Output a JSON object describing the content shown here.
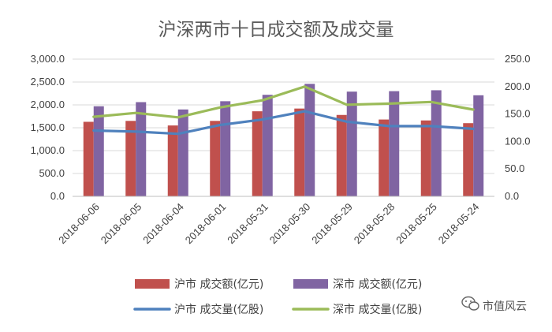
{
  "chart_data": {
    "type": "bar",
    "title": "沪深两市十日成交额及成交量",
    "categories": [
      "2018-06-06",
      "2018-06-05",
      "2018-06-04",
      "2018-06-01",
      "2018-05-31",
      "2018-05-30",
      "2018-05-29",
      "2018-05-28",
      "2018-05-25",
      "2018-05-24"
    ],
    "series": [
      {
        "name": "沪市 成交额(亿元)",
        "kind": "bar",
        "axis": "left",
        "color": "#c0504d",
        "values": [
          1630,
          1650,
          1550,
          1650,
          1860,
          1920,
          1780,
          1680,
          1660,
          1600
        ]
      },
      {
        "name": "深市 成交额(亿元)",
        "kind": "bar",
        "axis": "left",
        "color": "#8064a2",
        "values": [
          1970,
          2060,
          1900,
          2080,
          2220,
          2460,
          2290,
          2300,
          2320,
          2210
        ]
      },
      {
        "name": "沪市 成交量(亿股)",
        "kind": "line",
        "axis": "right",
        "color": "#4f81bd",
        "values": [
          120,
          118,
          114,
          130,
          140,
          155,
          136,
          128,
          128,
          123
        ]
      },
      {
        "name": "深市 成交量(亿股)",
        "kind": "line",
        "axis": "right",
        "color": "#9bbb59",
        "values": [
          145,
          152,
          144,
          162,
          175,
          200,
          167,
          169,
          172,
          158
        ]
      }
    ],
    "left_axis": {
      "ylim": [
        0,
        3000
      ],
      "ticks": [
        "0.0",
        "500.0",
        "1,000.0",
        "1,500.0",
        "2,000.0",
        "2,500.0",
        "3,000.0"
      ]
    },
    "right_axis": {
      "ylim": [
        0,
        250
      ],
      "ticks": [
        "0.0",
        "50.0",
        "100.0",
        "150.0",
        "200.0",
        "250.0"
      ]
    },
    "grid": true,
    "legend_position": "bottom"
  },
  "watermark": {
    "text": "市值风云",
    "icon": "wechat-icon"
  }
}
